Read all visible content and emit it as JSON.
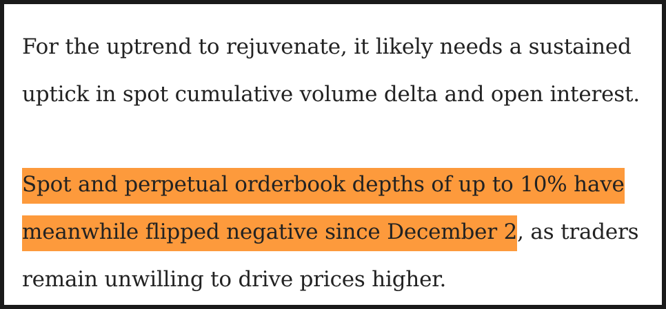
{
  "article": {
    "paragraph_1": {
      "line_1": "For the uptrend to rejuvenate, it likely needs a sustained",
      "line_2": "uptick in spot cumulative volume delta and open interest."
    },
    "paragraph_2": {
      "highlight_line_1": "Spot and perpetual orderbook depths of up to 10% have",
      "highlight_line_2": "meanwhile flipped negative since December 2",
      "tail_line_2": ", as traders",
      "line_3": "remain unwilling to drive prices higher."
    },
    "highlight_color": "#fd9a3c"
  }
}
